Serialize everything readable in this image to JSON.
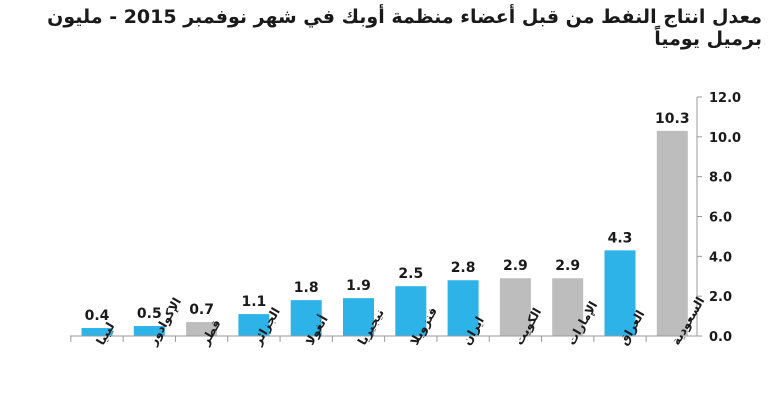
{
  "title": "معدل انتاج النفط من قبل أعضاء منظمة أوبك في شهر نوفمبر 2015 - مليون برميل يومياً",
  "colors": {
    "blue": "#2eb3e8",
    "gray": "#bdbdbd",
    "axis": "#9a9a9a",
    "text": "#1a1a1a"
  },
  "chart_data": {
    "type": "bar",
    "title": "معدل انتاج النفط من قبل أعضاء منظمة أوبك في شهر نوفمبر 2015 - مليون برميل يومياً",
    "xlabel": "",
    "ylabel": "",
    "ylim": [
      0,
      12
    ],
    "yticks": [
      "0.0",
      "2.0",
      "4.0",
      "6.0",
      "8.0",
      "10.0",
      "12.0"
    ],
    "y_axis_side": "right",
    "grid": false,
    "categories": [
      "ليبيا",
      "الإكوادور",
      "قطر",
      "الجزائر",
      "أنغولا",
      "نيجيريا",
      "فنزويلا",
      "ايران",
      "الكويت",
      "الإمارات",
      "العراق",
      "السعودية"
    ],
    "values": [
      0.4,
      0.5,
      0.7,
      1.1,
      1.8,
      1.9,
      2.5,
      2.8,
      2.9,
      2.9,
      4.3,
      10.3
    ],
    "data_labels": [
      "0.4",
      "0.5",
      "0.7",
      "1.1",
      "1.8",
      "1.9",
      "2.5",
      "2.8",
      "2.9",
      "2.9",
      "4.3",
      "10.3"
    ],
    "bar_colors": [
      "blue",
      "blue",
      "gray",
      "blue",
      "blue",
      "blue",
      "blue",
      "blue",
      "gray",
      "gray",
      "blue",
      "gray"
    ]
  }
}
